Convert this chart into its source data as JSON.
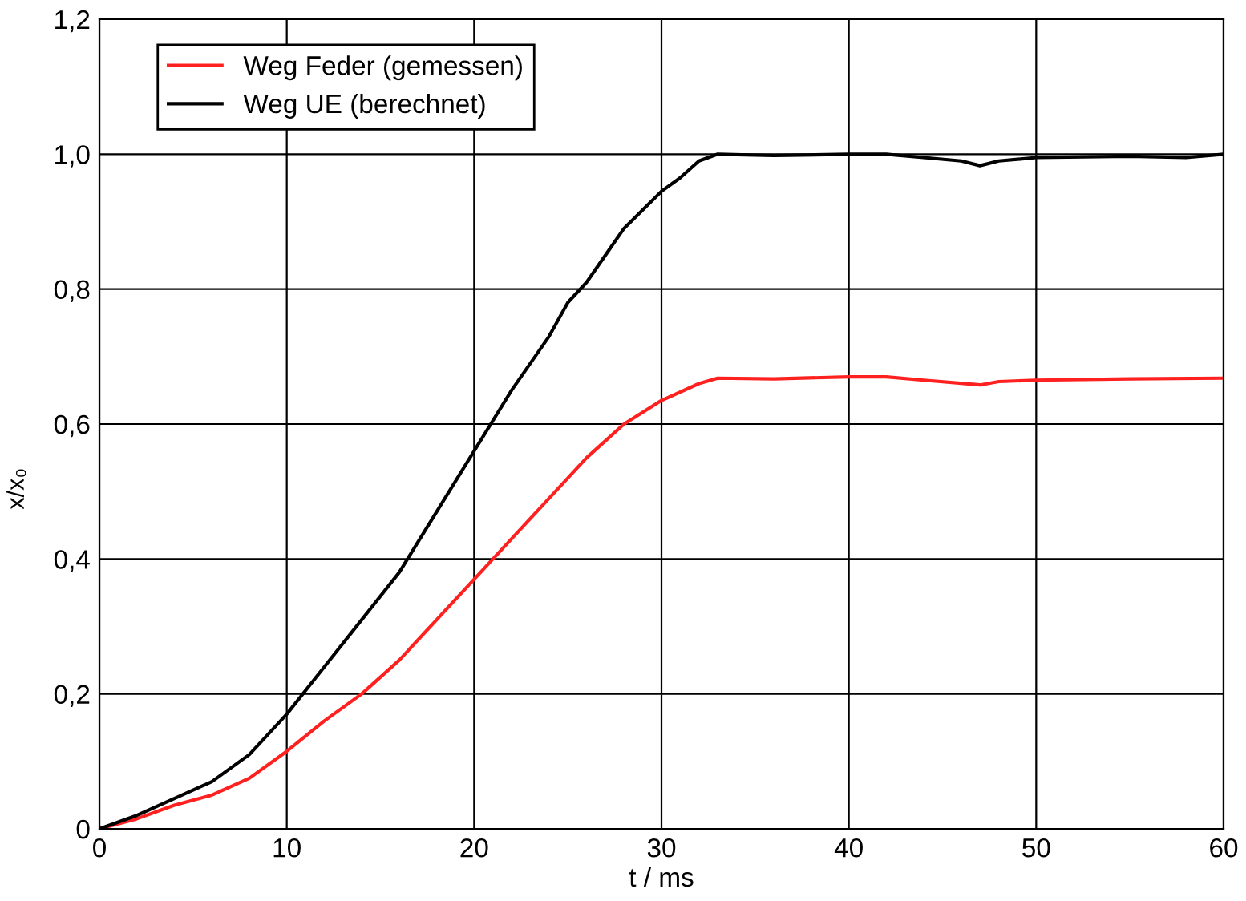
{
  "chart_data": {
    "type": "line",
    "xlabel": "t / ms",
    "ylabel": "x/x₀",
    "xlim": [
      0,
      60
    ],
    "xticks": [
      0,
      10,
      20,
      30,
      40,
      50,
      60
    ],
    "ylim": [
      0,
      1.2
    ],
    "yticks": [
      0,
      {
        "value": 0.2,
        "label": "0,2"
      },
      {
        "value": 0.4,
        "label": "0,4"
      },
      {
        "value": 0.6,
        "label": "0,6"
      },
      {
        "value": 0.8,
        "label": "0,8"
      },
      {
        "value": 1.0,
        "label": "1,0"
      },
      {
        "value": 1.2,
        "label": "1,2"
      }
    ],
    "grid": true,
    "legend": "top left",
    "marker": "none",
    "line_style": "solid",
    "series": [
      {
        "name": "Weg Feder (gemessen)",
        "color": "#ff2020",
        "x": [
          0,
          2,
          4,
          6,
          8,
          10,
          12,
          14,
          16,
          18,
          20,
          22,
          24,
          26,
          28,
          30,
          32,
          33,
          36,
          40,
          42,
          44,
          47,
          48,
          50,
          55,
          60
        ],
        "values": [
          0,
          0.015,
          0.035,
          0.05,
          0.075,
          0.115,
          0.16,
          0.2,
          0.25,
          0.31,
          0.37,
          0.43,
          0.49,
          0.55,
          0.6,
          0.635,
          0.66,
          0.668,
          0.667,
          0.67,
          0.67,
          0.665,
          0.658,
          0.663,
          0.665,
          0.667,
          0.668
        ]
      },
      {
        "name": "Weg UE (berechnet)",
        "color": "#000000",
        "x": [
          0,
          2,
          4,
          6,
          8,
          10,
          12,
          14,
          16,
          18,
          20,
          22,
          24,
          25,
          26,
          28,
          30,
          31,
          32,
          33,
          36,
          40,
          42,
          44,
          46,
          47,
          48,
          50,
          55,
          58,
          60
        ],
        "values": [
          0,
          0.02,
          0.045,
          0.07,
          0.11,
          0.17,
          0.24,
          0.31,
          0.38,
          0.47,
          0.56,
          0.65,
          0.73,
          0.78,
          0.81,
          0.89,
          0.945,
          0.965,
          0.99,
          1.0,
          0.998,
          1.0,
          1.0,
          0.995,
          0.99,
          0.983,
          0.99,
          0.995,
          0.997,
          0.995,
          1.0
        ]
      }
    ]
  }
}
